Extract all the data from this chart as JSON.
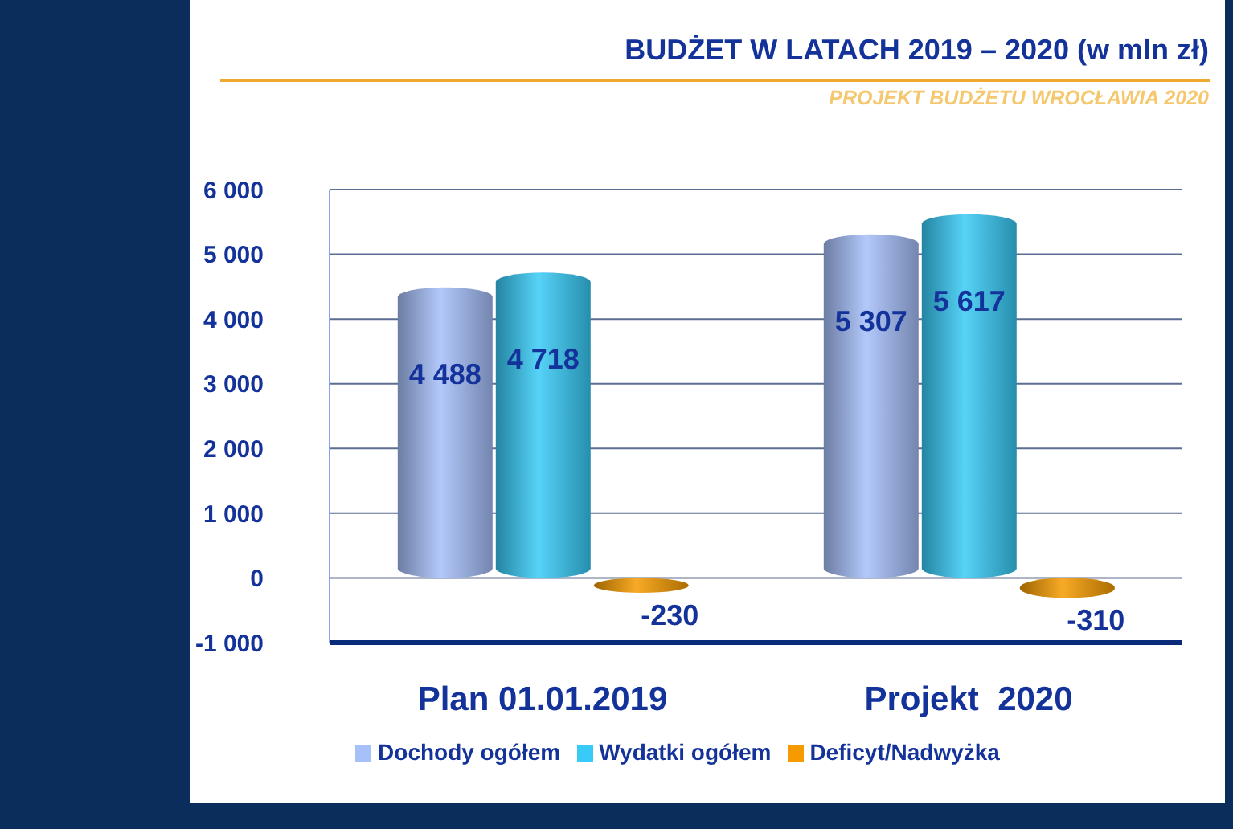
{
  "chart_data": {
    "type": "bar",
    "title": "BUDŻET W LATACH 2019 – 2020 (w mln zł)",
    "subtitle": "PROJEKT BUDŻETU WROCŁAWIA 2020",
    "categories": [
      "Plan 01.01.2019",
      "Projekt  2020"
    ],
    "series": [
      {
        "name": "Dochody ogółem",
        "color": "#a6c0fa",
        "values": [
          4488,
          5307
        ],
        "value_labels": [
          "4 488",
          "5 307"
        ]
      },
      {
        "name": "Wydatki ogółem",
        "color": "#38cbf7",
        "values": [
          4718,
          5617
        ],
        "value_labels": [
          "4 718",
          "5 617"
        ]
      },
      {
        "name": "Deficyt/Nadwyżka",
        "color": "#f59b00",
        "values": [
          -230,
          -310
        ],
        "value_labels": [
          "-230",
          "-310"
        ]
      }
    ],
    "ylim": [
      -1000,
      6000
    ],
    "yticks": [
      {
        "value": -1000,
        "label": "-1 000"
      },
      0,
      {
        "value": 1000,
        "label": "1 000"
      },
      {
        "value": 2000,
        "label": "2 000"
      },
      {
        "value": 3000,
        "label": "3 000"
      },
      {
        "value": 4000,
        "label": "4 000"
      },
      {
        "value": 5000,
        "label": "5 000"
      },
      {
        "value": 6000,
        "label": "6 000"
      }
    ],
    "grid": "y",
    "legend": "bottom"
  }
}
